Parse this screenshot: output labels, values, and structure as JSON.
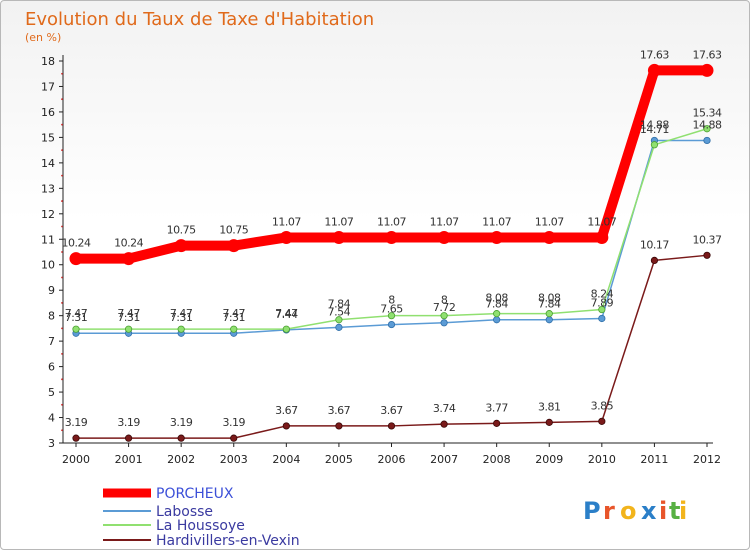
{
  "chart_data": {
    "type": "line",
    "title": "Evolution du Taux de Taxe d'Habitation",
    "subtitle": "(en %)",
    "x": [
      "2000",
      "2001",
      "2002",
      "2003",
      "2004",
      "2005",
      "2006",
      "2007",
      "2008",
      "2009",
      "2010",
      "2011",
      "2012"
    ],
    "ylim": [
      3,
      18
    ],
    "yticks": [
      3,
      4,
      5,
      6,
      7,
      8,
      9,
      10,
      11,
      12,
      13,
      14,
      15,
      16,
      17,
      18
    ],
    "grid": false,
    "legend_position": "bottom-left",
    "series": [
      {
        "name": "PORCHEUX",
        "color": "#ff0000",
        "values": [
          10.24,
          10.24,
          10.75,
          10.75,
          11.07,
          11.07,
          11.07,
          11.07,
          11.07,
          11.07,
          11.07,
          17.63,
          17.63
        ],
        "labels": [
          "10.24",
          "10.24",
          "10.75",
          "10.75",
          "11.07",
          "11.07",
          "11.07",
          "11.07",
          "11.07",
          "11.07",
          "11.07",
          "17.63",
          "17.63"
        ]
      },
      {
        "name": "Labosse",
        "color": "#5b9bd5",
        "values": [
          7.31,
          7.31,
          7.31,
          7.31,
          7.44,
          7.54,
          7.65,
          7.72,
          7.84,
          7.84,
          7.89,
          14.88,
          14.88
        ],
        "labels": [
          "7.31",
          "7.31",
          "7.31",
          "7.31",
          "7.44",
          "7.54",
          "7.65",
          "7.72",
          "7.84",
          "7.84",
          "7.89",
          "14.88",
          "14.88"
        ]
      },
      {
        "name": "La Houssoye",
        "color": "#90e070",
        "values": [
          7.47,
          7.47,
          7.47,
          7.47,
          7.47,
          7.84,
          8,
          8,
          8.08,
          8.08,
          8.24,
          14.71,
          15.34
        ],
        "labels": [
          "7.47",
          "7.47",
          "7.47",
          "7.47",
          "7.47",
          "7.84",
          "8",
          "8",
          "8.08",
          "8.08",
          "8.24",
          "14.71",
          "15.34"
        ]
      },
      {
        "name": "Hardivillers-en-Vexin",
        "color": "#7a1a1a",
        "values": [
          3.19,
          3.19,
          3.19,
          3.19,
          3.67,
          3.67,
          3.67,
          3.74,
          3.77,
          3.81,
          3.85,
          10.17,
          10.37
        ],
        "labels": [
          "3.19",
          "3.19",
          "3.19",
          "3.19",
          "3.67",
          "3.67",
          "3.67",
          "3.74",
          "3.77",
          "3.81",
          "3.85",
          "10.17",
          "10.37"
        ]
      }
    ]
  },
  "logo": {
    "text": "Proxiti",
    "letter_colors": [
      "#2b7fc8",
      "#e8552a",
      "#f2b41c",
      "#2b7fc8",
      "#e8552a",
      "#58b043",
      "#f2b41c"
    ]
  }
}
